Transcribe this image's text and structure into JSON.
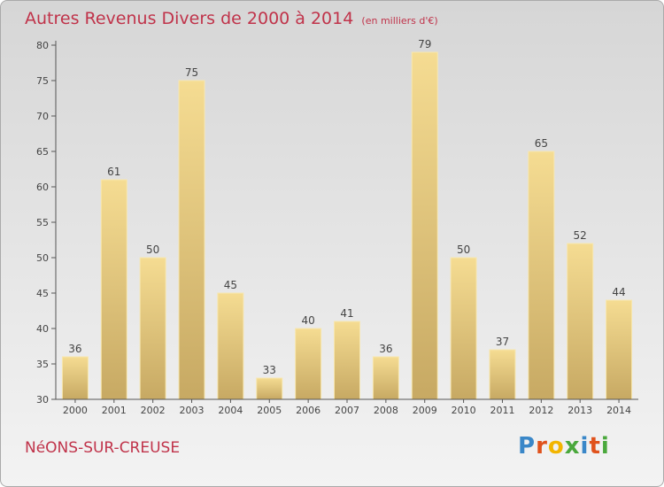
{
  "chart_data": {
    "type": "bar",
    "title": "Autres Revenus Divers de 2000 à 2014",
    "unit": "(en milliers d'€)",
    "categories": [
      "2000",
      "2001",
      "2002",
      "2003",
      "2004",
      "2005",
      "2006",
      "2007",
      "2008",
      "2009",
      "2010",
      "2011",
      "2012",
      "2013",
      "2014"
    ],
    "values": [
      36,
      61,
      50,
      75,
      45,
      33,
      40,
      41,
      36,
      79,
      50,
      37,
      65,
      52,
      44
    ],
    "xlabel": "",
    "ylabel": "",
    "ylim": [
      30,
      80
    ],
    "yticks": [
      30,
      35,
      40,
      45,
      50,
      55,
      60,
      65,
      70,
      75,
      80
    ],
    "grid": false,
    "bar_color_top": "#f5dc92",
    "bar_color_bottom": "#c7a963"
  },
  "footer": {
    "town": "NéONS-SUR-CREUSE",
    "logo_letters": [
      "P",
      "r",
      "o",
      "x",
      "i",
      "t",
      "i"
    ],
    "logo_colors": [
      "#3a87c8",
      "#e0521c",
      "#f2b500",
      "#4aa83c",
      "#3a87c8",
      "#e0521c",
      "#4aa83c"
    ]
  }
}
